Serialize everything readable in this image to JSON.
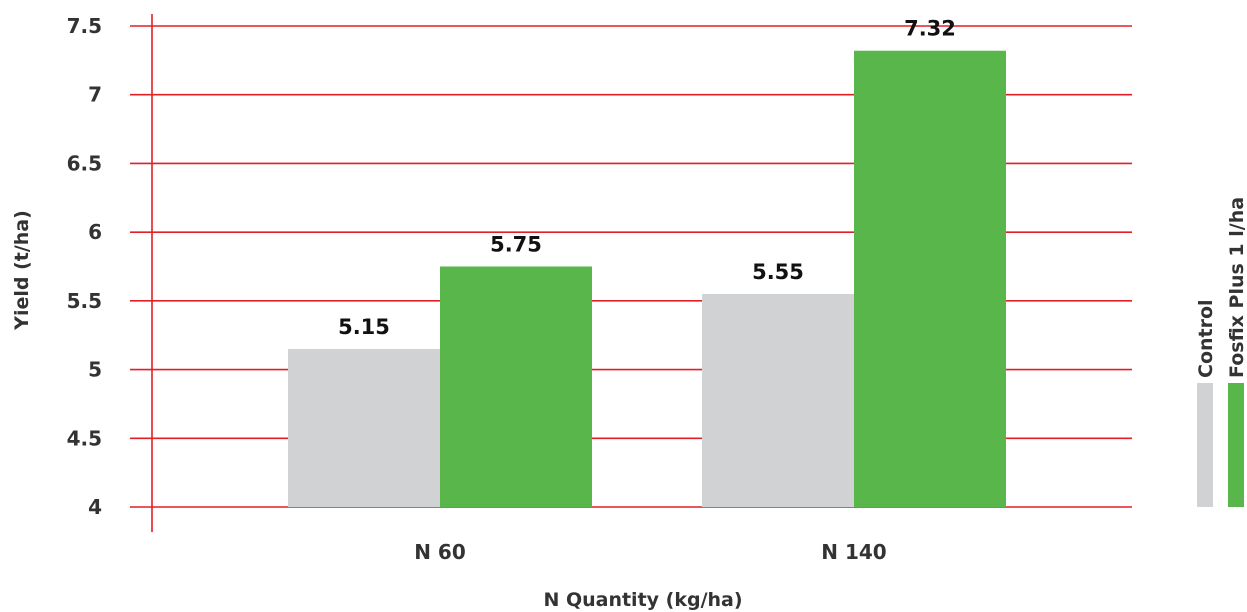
{
  "chart_data": {
    "type": "bar",
    "categories": [
      "N 60",
      "N 140"
    ],
    "series": [
      {
        "name": "Control",
        "values": [
          5.15,
          5.55
        ],
        "color": "#d1d2d4"
      },
      {
        "name": "Fosfix Plus 1 l/ha",
        "values": [
          5.75,
          7.32
        ],
        "color": "#59b64a"
      }
    ],
    "data_labels": [
      [
        "5.15",
        "5.55"
      ],
      [
        "5.75",
        "7.32"
      ]
    ],
    "y_ticks": [
      "4",
      "4.5",
      "5",
      "5.5",
      "6",
      "6.5",
      "7",
      "7.5"
    ],
    "xlabel": "N Quantity (kg/ha)",
    "ylabel": "Yield (t/ha)",
    "ylim": [
      4,
      7.5
    ],
    "grid": true,
    "grid_color": "#e31e24",
    "legend_position": "right"
  }
}
